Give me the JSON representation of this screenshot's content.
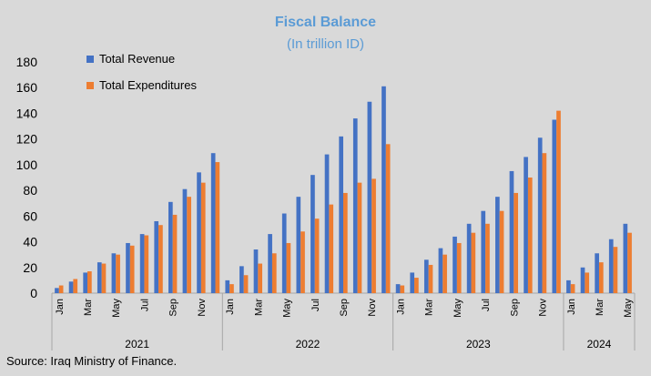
{
  "chart_data": {
    "type": "bar",
    "title": "Fiscal Balance",
    "subtitle": "(In trillion ID)",
    "source": "Source: Iraq Ministry of Finance.",
    "ylim": [
      0,
      180
    ],
    "yticks": [
      0,
      20,
      40,
      60,
      80,
      100,
      120,
      140,
      160,
      180
    ],
    "legend_position": "top-left",
    "colors": {
      "revenue": "#4472c4",
      "expenditures": "#ed7d31"
    },
    "groups": [
      {
        "year": "2021",
        "months": [
          "Jan",
          "Feb",
          "Mar",
          "Apr",
          "May",
          "Jun",
          "Jul",
          "Aug",
          "Sep",
          "Oct",
          "Nov",
          "Dec"
        ]
      },
      {
        "year": "2022",
        "months": [
          "Jan",
          "Feb",
          "Mar",
          "Apr",
          "May",
          "Jun",
          "Jul",
          "Aug",
          "Sep",
          "Oct",
          "Nov",
          "Dec"
        ]
      },
      {
        "year": "2023",
        "months": [
          "Jan",
          "Feb",
          "Mar",
          "Apr",
          "May",
          "Jun",
          "Jul",
          "Aug",
          "Sep",
          "Oct",
          "Nov",
          "Dec"
        ]
      },
      {
        "year": "2024",
        "months": [
          "Jan",
          "Feb",
          "Mar",
          "Apr",
          "May"
        ]
      }
    ],
    "series": [
      {
        "name": "Total Revenue",
        "values": [
          4,
          9,
          16,
          24,
          31,
          39,
          46,
          56,
          71,
          81,
          94,
          109,
          10,
          21,
          34,
          46,
          62,
          75,
          92,
          108,
          122,
          136,
          149,
          161,
          7,
          16,
          26,
          35,
          44,
          54,
          64,
          75,
          95,
          106,
          121,
          135,
          10,
          20,
          31,
          42,
          54
        ]
      },
      {
        "name": "Total Expenditures",
        "values": [
          6,
          11,
          17,
          23,
          30,
          37,
          45,
          53,
          61,
          75,
          86,
          102,
          7,
          14,
          23,
          31,
          39,
          48,
          58,
          69,
          78,
          86,
          89,
          116,
          6,
          12,
          22,
          30,
          39,
          47,
          54,
          64,
          78,
          90,
          109,
          142,
          7,
          16,
          24,
          36,
          47
        ]
      }
    ]
  }
}
